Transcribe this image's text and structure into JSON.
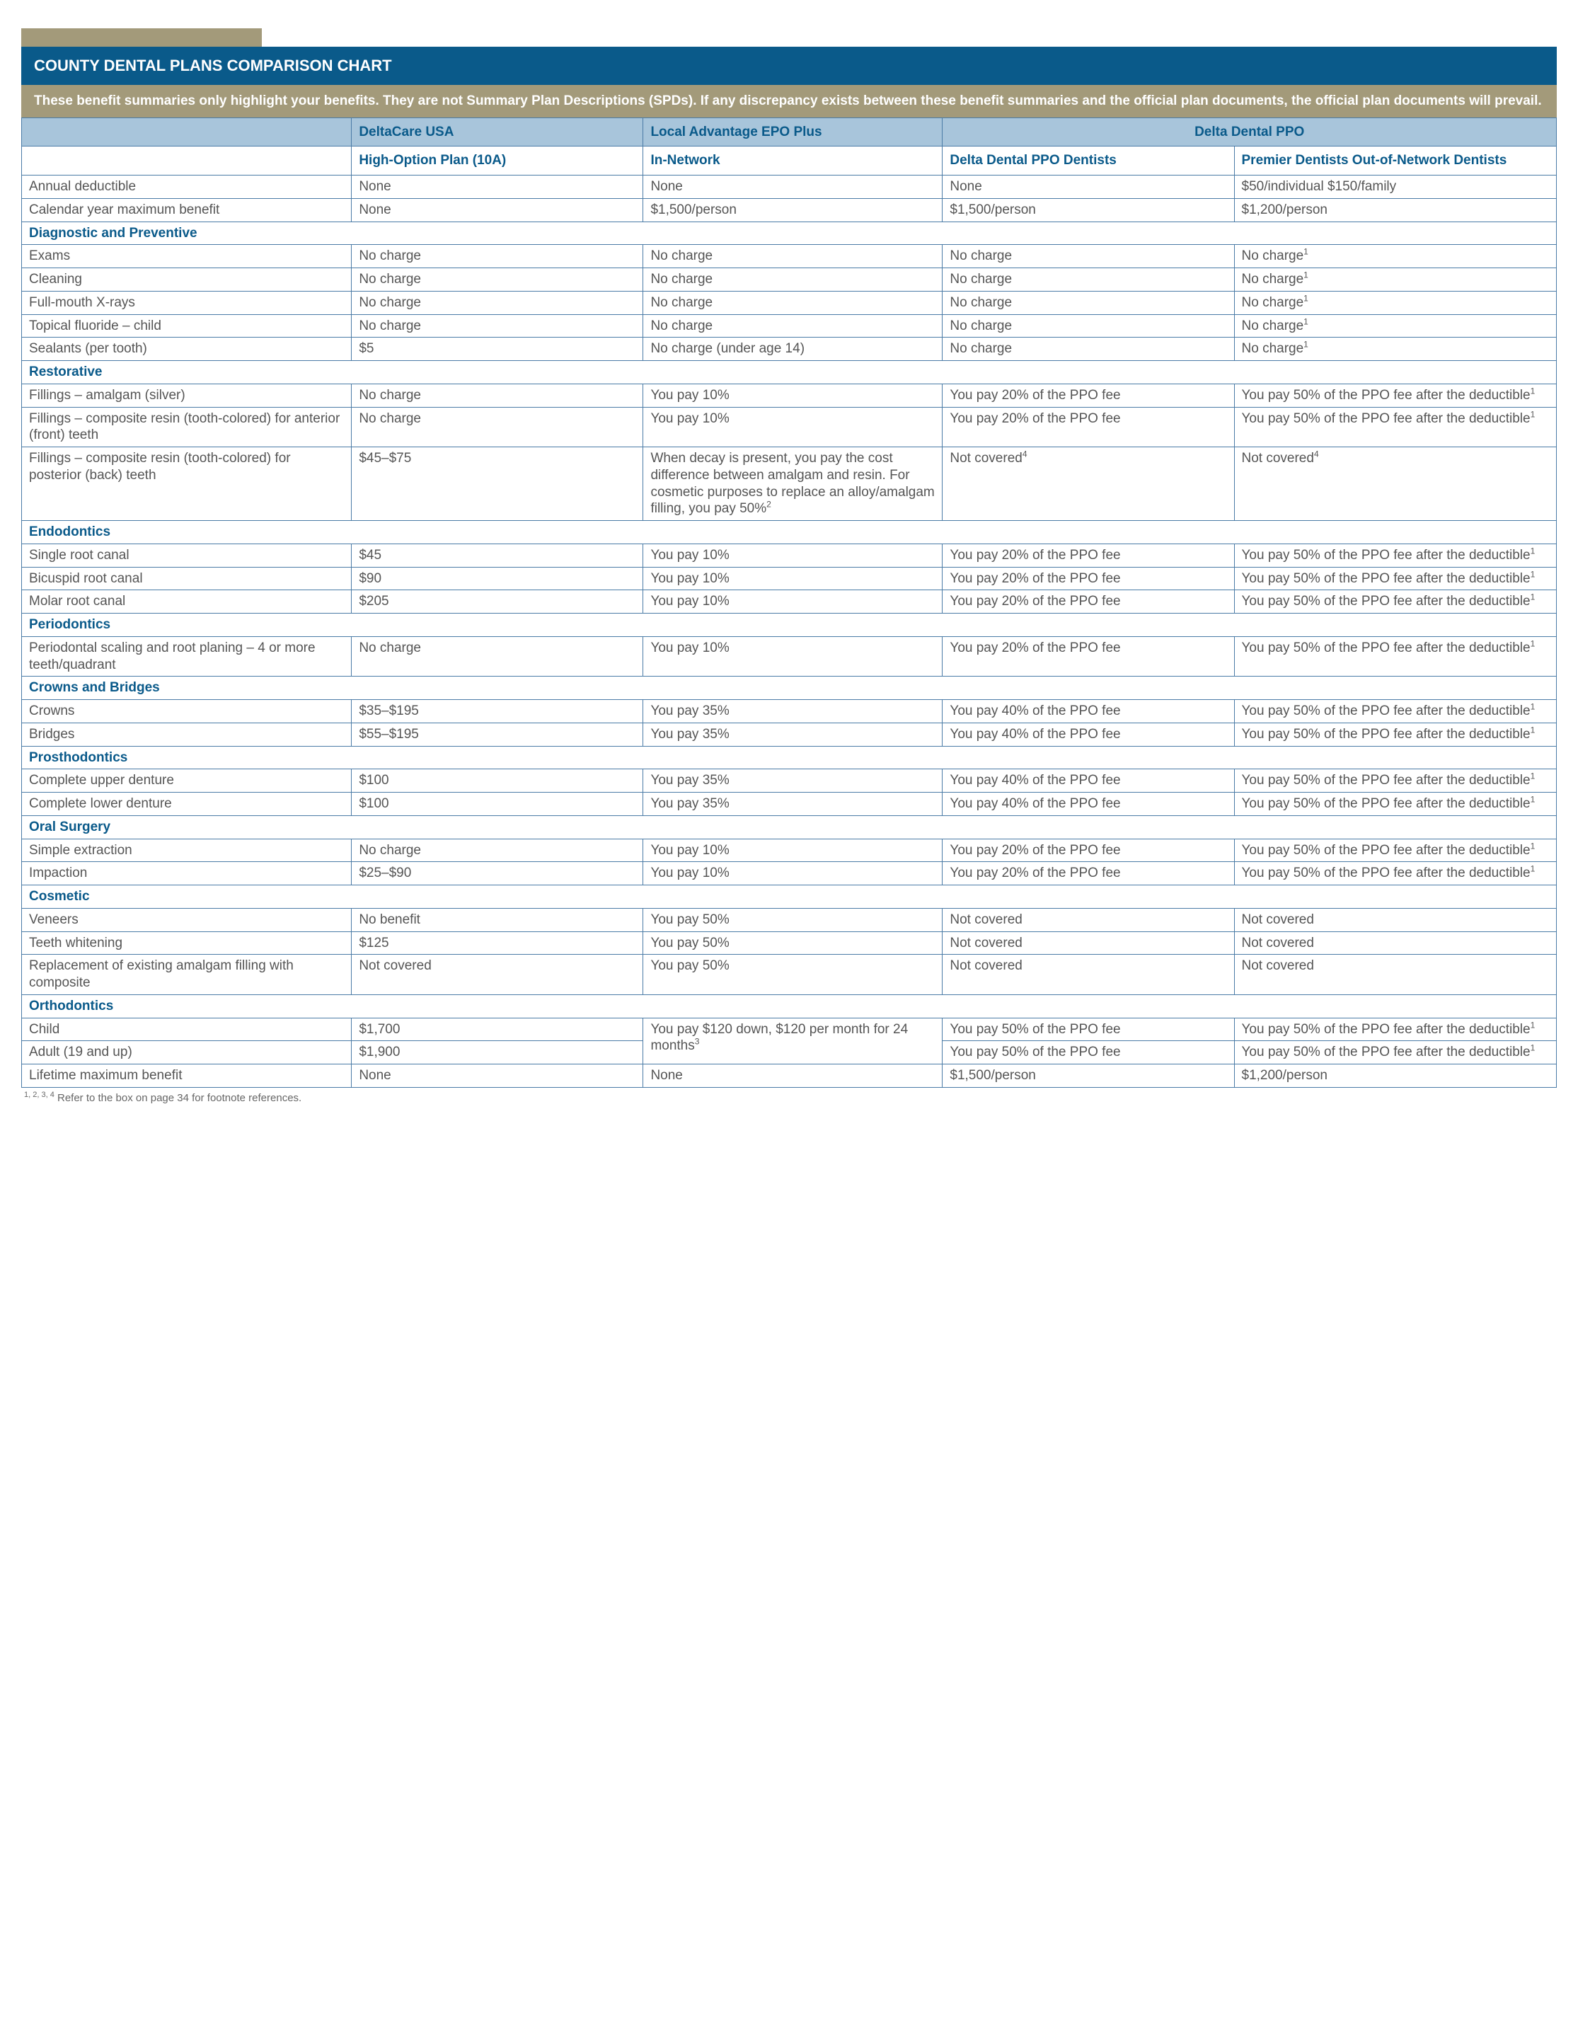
{
  "colors": {
    "title_bg": "#0a5a8a",
    "subtitle_bg": "#a39a7a",
    "header_cell_bg": "#a8c5db",
    "header_text": "#0a5a8a",
    "border": "#4a7ba6",
    "body_text": "#555555"
  },
  "title": "COUNTY DENTAL PLANS COMPARISON CHART",
  "subtitle": "These benefit summaries only highlight your benefits. They are not Summary Plan Descriptions (SPDs). If any discrepancy exists between these benefit summaries and the official plan documents, the official plan documents will prevail.",
  "plan_headers": {
    "col1": "",
    "col2": "DeltaCare USA",
    "col3": "Local Advantage EPO Plus",
    "col45": "Delta Dental PPO"
  },
  "col_headers": {
    "col1": "",
    "col2": "High-Option Plan (10A)",
    "col3": "In-Network",
    "col4": "Delta Dental PPO Dentists",
    "col5": "Premier Dentists Out-of-Network Dentists"
  },
  "column_widths_pct": [
    21.5,
    19,
    19.5,
    19,
    21
  ],
  "sections": [
    {
      "rows": [
        {
          "label": "Annual deductible",
          "c2": "None",
          "c3": "None",
          "c4": "None",
          "c5": "$50/individual $150/family"
        },
        {
          "label": "Calendar year maximum benefit",
          "c2": "None",
          "c3": "$1,500/person",
          "c4": "$1,500/person",
          "c5": "$1,200/person"
        }
      ]
    },
    {
      "title": "Diagnostic and Preventive",
      "rows": [
        {
          "label": "Exams",
          "c2": "No charge",
          "c3": "No charge",
          "c4": "No charge",
          "c5": "No charge",
          "c5sup": "1"
        },
        {
          "label": "Cleaning",
          "c2": "No charge",
          "c3": "No charge",
          "c4": "No charge",
          "c5": "No charge",
          "c5sup": "1"
        },
        {
          "label": "Full-mouth X-rays",
          "c2": "No charge",
          "c3": "No charge",
          "c4": "No charge",
          "c5": "No charge",
          "c5sup": "1"
        },
        {
          "label": "Topical fluoride – child",
          "c2": "No charge",
          "c3": "No charge",
          "c4": "No charge",
          "c5": "No charge",
          "c5sup": "1"
        },
        {
          "label": "Sealants (per tooth)",
          "c2": "$5",
          "c3": "No charge (under age 14)",
          "c4": "No charge",
          "c5": "No charge",
          "c5sup": "1"
        }
      ]
    },
    {
      "title": "Restorative",
      "rows": [
        {
          "label": "Fillings – amalgam (silver)",
          "c2": "No charge",
          "c3": "You pay 10%",
          "c4": "You pay 20% of the PPO fee",
          "c5": "You pay 50% of the PPO fee after the deductible",
          "c5sup": "1"
        },
        {
          "label": "Fillings – composite resin (tooth-colored) for anterior (front) teeth",
          "c2": "No charge",
          "c3": "You pay 10%",
          "c4": "You pay 20% of the PPO fee",
          "c5": "You pay 50% of the PPO fee after the deductible",
          "c5sup": "1"
        },
        {
          "label": "Fillings – composite resin (tooth-colored) for posterior (back) teeth",
          "c2": "$45–$75",
          "c3": "When decay is present, you pay the cost difference between amalgam and resin. For cosmetic purposes to replace an alloy/amalgam filling, you pay 50%",
          "c3sup": "2",
          "c4": "Not covered",
          "c4sup": "4",
          "c5": "Not covered",
          "c5sup": "4"
        }
      ]
    },
    {
      "title": "Endodontics",
      "rows": [
        {
          "label": "Single root canal",
          "c2": "$45",
          "c3": "You pay 10%",
          "c4": "You pay 20% of the PPO fee",
          "c5": "You pay 50% of the PPO fee after the deductible",
          "c5sup": "1"
        },
        {
          "label": "Bicuspid root canal",
          "c2": "$90",
          "c3": "You pay 10%",
          "c4": "You pay 20% of the PPO fee",
          "c5": "You pay 50% of the PPO fee after the deductible",
          "c5sup": "1"
        },
        {
          "label": "Molar root canal",
          "c2": "$205",
          "c3": "You pay 10%",
          "c4": "You pay 20% of the PPO fee",
          "c5": "You pay 50% of the PPO fee after the deductible",
          "c5sup": "1"
        }
      ]
    },
    {
      "title": "Periodontics",
      "rows": [
        {
          "label": "Periodontal scaling and root planing – 4 or more teeth/quadrant",
          "c2": "No charge",
          "c3": "You pay 10%",
          "c4": "You pay 20% of the PPO fee",
          "c5": "You pay 50% of the PPO fee after the deductible",
          "c5sup": "1"
        }
      ]
    },
    {
      "title": "Crowns and Bridges",
      "rows": [
        {
          "label": "Crowns",
          "c2": "$35–$195",
          "c3": "You pay 35%",
          "c4": "You pay 40% of the PPO fee",
          "c5": "You pay 50% of the PPO fee after the deductible",
          "c5sup": "1"
        },
        {
          "label": "Bridges",
          "c2": "$55–$195",
          "c3": "You pay 35%",
          "c4": "You pay 40% of the PPO fee",
          "c5": "You pay 50% of the PPO fee after the deductible",
          "c5sup": "1"
        }
      ]
    },
    {
      "title": "Prosthodontics",
      "rows": [
        {
          "label": "Complete upper denture",
          "c2": "$100",
          "c3": "You pay 35%",
          "c4": "You pay 40% of the PPO fee",
          "c5": "You pay 50% of the PPO fee after the deductible",
          "c5sup": "1"
        },
        {
          "label": "Complete lower denture",
          "c2": "$100",
          "c3": "You pay 35%",
          "c4": "You pay 40% of the PPO fee",
          "c5": "You pay 50% of the PPO fee after the deductible",
          "c5sup": "1"
        }
      ]
    },
    {
      "title": "Oral Surgery",
      "rows": [
        {
          "label": "Simple extraction",
          "c2": "No charge",
          "c3": "You pay 10%",
          "c4": "You pay 20% of the PPO fee",
          "c5": "You pay 50% of the PPO fee after the deductible",
          "c5sup": "1"
        },
        {
          "label": "Impaction",
          "c2": "$25–$90",
          "c3": "You pay 10%",
          "c4": "You pay 20% of the PPO fee",
          "c5": "You pay 50% of the PPO fee after the deductible",
          "c5sup": "1"
        }
      ]
    },
    {
      "title": "Cosmetic",
      "rows": [
        {
          "label": "Veneers",
          "c2": "No benefit",
          "c3": "You pay 50%",
          "c4": "Not covered",
          "c5": "Not covered"
        },
        {
          "label": "Teeth whitening",
          "c2": "$125",
          "c3": "You pay 50%",
          "c4": "Not covered",
          "c5": "Not covered"
        },
        {
          "label": "Replacement of existing amalgam filling with composite",
          "c2": "Not covered",
          "c3": "You pay 50%",
          "c4": "Not covered",
          "c5": "Not covered"
        }
      ]
    },
    {
      "title": "Orthodontics",
      "rows": [
        {
          "label": "Child",
          "c2": "$1,700",
          "c3": "You pay $120 down, $120 per month for 24 months",
          "c3sup": "3",
          "c3rowspan": 2,
          "c4": "You pay 50% of the PPO fee",
          "c5": "You pay 50% of the PPO fee after the deductible",
          "c5sup": "1"
        },
        {
          "label": "Adult (19 and up)",
          "c2": "$1,900",
          "c3skip": true,
          "c4": "You pay 50% of the PPO fee",
          "c5": "You pay 50% of the PPO fee after the deductible",
          "c5sup": "1"
        },
        {
          "label": "Lifetime maximum benefit",
          "c2": "None",
          "c3": "None",
          "c4": "$1,500/person",
          "c5": "$1,200/person"
        }
      ]
    }
  ],
  "footnote_sup": "1, 2, 3, 4",
  "footnote_text": " Refer to the box on page 34 for footnote references."
}
